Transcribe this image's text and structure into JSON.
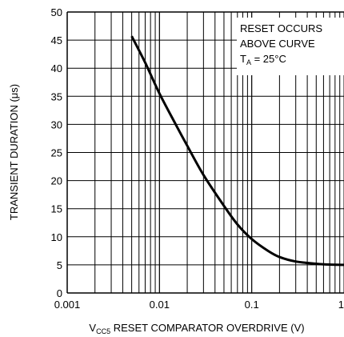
{
  "chart_data": {
    "type": "line",
    "x_scale": "log",
    "xlabel": "V",
    "xlabel_sub": "CC5",
    "xlabel_rest": " RESET COMPARATOR OVERDRIVE (V)",
    "ylabel": "TRANSIENT DURATION (μs)",
    "xlim": [
      0.001,
      1
    ],
    "ylim": [
      0,
      50
    ],
    "x_ticks": [
      0.001,
      0.01,
      0.1,
      1
    ],
    "x_tick_labels": [
      "0.001",
      "0.01",
      "0.1",
      "1"
    ],
    "y_ticks": [
      0,
      5,
      10,
      15,
      20,
      25,
      30,
      35,
      40,
      45,
      50
    ],
    "y_tick_labels": [
      "0",
      "5",
      "10",
      "15",
      "20",
      "25",
      "30",
      "35",
      "40",
      "45",
      "50"
    ],
    "grid": true,
    "annotation": {
      "line1": "RESET OCCURS",
      "line2": "ABOVE CURVE",
      "line3_main": "T",
      "line3_sub": "A",
      "line3_rest": " = 25°C"
    },
    "series": [
      {
        "color": "#000000",
        "x": [
          0.005,
          0.007,
          0.01,
          0.015,
          0.02,
          0.03,
          0.05,
          0.07,
          0.1,
          0.15,
          0.2,
          0.3,
          0.5,
          0.7,
          1.0
        ],
        "y": [
          45.7,
          41.0,
          35.5,
          30.0,
          26.2,
          21.0,
          15.5,
          12.2,
          9.6,
          7.5,
          6.4,
          5.6,
          5.2,
          5.05,
          5.0
        ]
      }
    ]
  }
}
